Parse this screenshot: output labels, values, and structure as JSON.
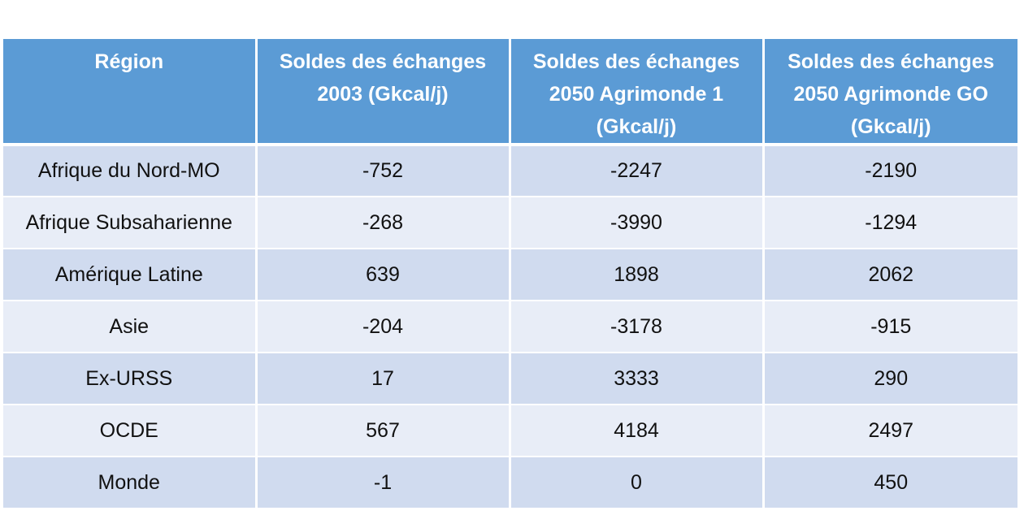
{
  "table": {
    "headers": [
      [
        "Région"
      ],
      [
        "Soldes des échanges",
        "2003 (Gkcal/j)"
      ],
      [
        "Soldes des échanges",
        "2050 Agrimonde 1",
        "(Gkcal/j)"
      ],
      [
        "Soldes des échanges",
        "2050 Agrimonde GO",
        "(Gkcal/j)"
      ]
    ],
    "rows": [
      [
        "Afrique du Nord-MO",
        "-752",
        "-2247",
        "-2190"
      ],
      [
        "Afrique Subsaharienne",
        "-268",
        "-3990",
        "-1294"
      ],
      [
        "Amérique Latine",
        "639",
        "1898",
        "2062"
      ],
      [
        "Asie",
        "-204",
        "-3178",
        "-915"
      ],
      [
        "Ex-URSS",
        "17",
        "3333",
        "290"
      ],
      [
        "OCDE",
        "567",
        "4184",
        "2497"
      ],
      [
        "Monde",
        "-1",
        "0",
        "450"
      ]
    ]
  },
  "colors": {
    "header_bg": "#5b9bd5",
    "header_text": "#ffffff",
    "row_odd_bg": "#d0dbef",
    "row_even_bg": "#e8edf7"
  }
}
